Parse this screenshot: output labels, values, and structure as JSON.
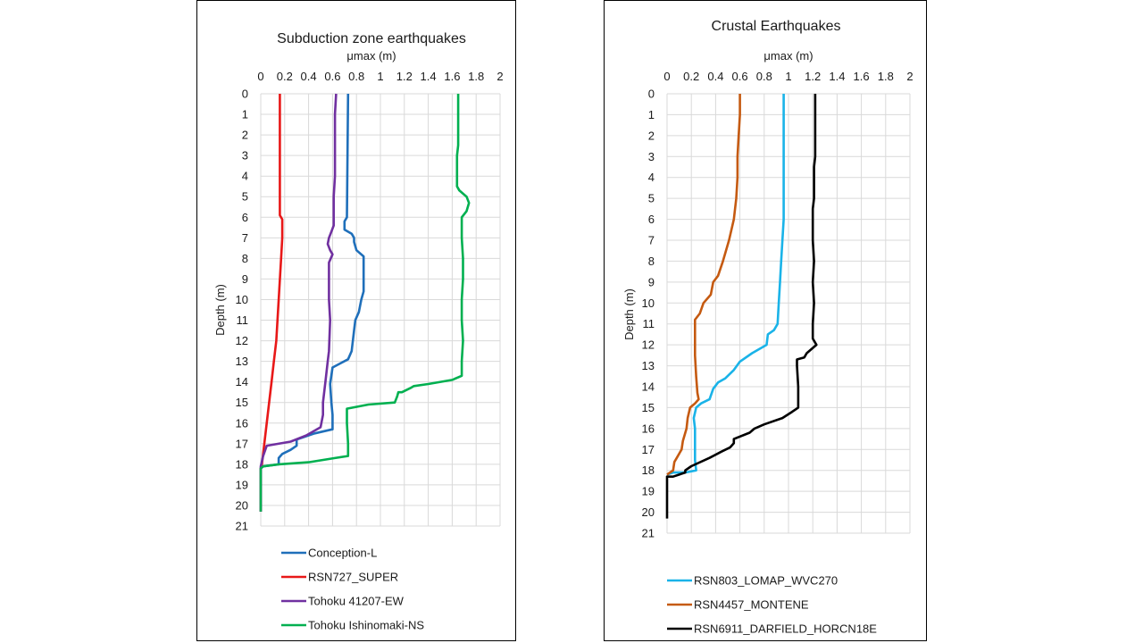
{
  "chart_data": [
    {
      "type": "line",
      "title": "Subduction zone earthquakes",
      "xlabel": "μmax (m)",
      "ylabel": "Depth (m)",
      "xlim": [
        0,
        2
      ],
      "ylim": [
        0,
        21
      ],
      "x_ticks": [
        "0",
        "0.2",
        "0.4",
        "0.6",
        "0.8",
        "1",
        "1.2",
        "1.4",
        "1.6",
        "1.8",
        "2"
      ],
      "y_ticks": [
        "0",
        "1",
        "2",
        "3",
        "4",
        "5",
        "6",
        "7",
        "8",
        "9",
        "10",
        "11",
        "12",
        "13",
        "14",
        "15",
        "16",
        "17",
        "18",
        "19",
        "20",
        "21"
      ],
      "y_inverted": true,
      "grid": true,
      "legend_position": "bottom",
      "series": [
        {
          "name": "Conception-L",
          "color": "#1f6fba",
          "points": [
            [
              0.73,
              0
            ],
            [
              0.72,
              6
            ],
            [
              0.7,
              6.2
            ],
            [
              0.7,
              6.6
            ],
            [
              0.76,
              6.8
            ],
            [
              0.78,
              7
            ],
            [
              0.78,
              7.2
            ],
            [
              0.8,
              7.6
            ],
            [
              0.86,
              7.9
            ],
            [
              0.86,
              9.6
            ],
            [
              0.84,
              10
            ],
            [
              0.82,
              10.6
            ],
            [
              0.79,
              11
            ],
            [
              0.78,
              11.5
            ],
            [
              0.76,
              12.5
            ],
            [
              0.73,
              12.9
            ],
            [
              0.6,
              13.3
            ],
            [
              0.58,
              14.1
            ],
            [
              0.59,
              15
            ],
            [
              0.6,
              15.6
            ],
            [
              0.6,
              16.3
            ],
            [
              0.45,
              16.5
            ],
            [
              0.3,
              16.8
            ],
            [
              0.3,
              17.1
            ],
            [
              0.25,
              17.3
            ],
            [
              0.18,
              17.5
            ],
            [
              0.15,
              17.7
            ],
            [
              0.15,
              18
            ],
            [
              0.02,
              18.1
            ],
            [
              0,
              18.2
            ],
            [
              0,
              20.3
            ]
          ]
        },
        {
          "name": "RSN727_SUPER",
          "color": "#e81818",
          "points": [
            [
              0.16,
              0
            ],
            [
              0.16,
              5.9
            ],
            [
              0.18,
              6.1
            ],
            [
              0.18,
              7
            ],
            [
              0.17,
              8
            ],
            [
              0.15,
              10
            ],
            [
              0.13,
              12
            ],
            [
              0.11,
              13
            ],
            [
              0.09,
              14
            ],
            [
              0.07,
              15
            ],
            [
              0.05,
              16
            ],
            [
              0.03,
              17
            ],
            [
              0.01,
              18
            ],
            [
              0,
              18.2
            ],
            [
              0,
              20.3
            ]
          ]
        },
        {
          "name": "Tohoku 41207-EW",
          "color": "#7030a0",
          "points": [
            [
              0.63,
              0
            ],
            [
              0.62,
              1
            ],
            [
              0.62,
              4
            ],
            [
              0.61,
              5
            ],
            [
              0.61,
              6
            ],
            [
              0.61,
              6.4
            ],
            [
              0.59,
              6.7
            ],
            [
              0.57,
              7
            ],
            [
              0.56,
              7.3
            ],
            [
              0.58,
              7.6
            ],
            [
              0.6,
              7.8
            ],
            [
              0.57,
              8.2
            ],
            [
              0.57,
              10
            ],
            [
              0.58,
              11
            ],
            [
              0.57,
              12.5
            ],
            [
              0.56,
              13
            ],
            [
              0.54,
              14
            ],
            [
              0.52,
              15
            ],
            [
              0.52,
              15.6
            ],
            [
              0.5,
              16.2
            ],
            [
              0.38,
              16.6
            ],
            [
              0.25,
              16.9
            ],
            [
              0.05,
              17.1
            ],
            [
              0.02,
              17.6
            ],
            [
              0,
              18.1
            ],
            [
              0,
              20.3
            ]
          ]
        },
        {
          "name": "Tohoku Ishinomaki-NS",
          "color": "#00b050",
          "points": [
            [
              1.65,
              0
            ],
            [
              1.65,
              2.5
            ],
            [
              1.64,
              3
            ],
            [
              1.64,
              4.5
            ],
            [
              1.66,
              4.7
            ],
            [
              1.72,
              5
            ],
            [
              1.74,
              5.3
            ],
            [
              1.72,
              5.7
            ],
            [
              1.68,
              6
            ],
            [
              1.68,
              7
            ],
            [
              1.69,
              8
            ],
            [
              1.69,
              9
            ],
            [
              1.68,
              10
            ],
            [
              1.68,
              11
            ],
            [
              1.69,
              12
            ],
            [
              1.68,
              13
            ],
            [
              1.68,
              13.7
            ],
            [
              1.6,
              13.9
            ],
            [
              1.4,
              14.1
            ],
            [
              1.28,
              14.2
            ],
            [
              1.25,
              14.3
            ],
            [
              1.18,
              14.5
            ],
            [
              1.15,
              14.5
            ],
            [
              1.14,
              14.7
            ],
            [
              1.12,
              15
            ],
            [
              0.9,
              15.1
            ],
            [
              0.72,
              15.3
            ],
            [
              0.72,
              16
            ],
            [
              0.73,
              17
            ],
            [
              0.73,
              17.6
            ],
            [
              0.62,
              17.7
            ],
            [
              0.4,
              17.9
            ],
            [
              0.15,
              18
            ],
            [
              0.02,
              18.1
            ],
            [
              0,
              18.2
            ],
            [
              0,
              20.3
            ]
          ]
        }
      ]
    },
    {
      "type": "line",
      "title": "Crustal Earthquakes",
      "xlabel": "μmax (m)",
      "ylabel": "Depth (m)",
      "xlim": [
        0,
        2
      ],
      "ylim": [
        0,
        21
      ],
      "x_ticks": [
        "0",
        "0.2",
        "0.4",
        "0.6",
        "0.8",
        "1",
        "1.2",
        "1.4",
        "1.6",
        "1.8",
        "2"
      ],
      "y_ticks": [
        "0",
        "1",
        "2",
        "3",
        "4",
        "5",
        "6",
        "7",
        "8",
        "9",
        "10",
        "11",
        "12",
        "13",
        "14",
        "15",
        "16",
        "17",
        "18",
        "19",
        "20",
        "21"
      ],
      "y_inverted": true,
      "grid": true,
      "legend_position": "bottom",
      "series": [
        {
          "name": "RSN803_LOMAP_WVC270",
          "color": "#1ab3e8",
          "points": [
            [
              0.96,
              0
            ],
            [
              0.96,
              6
            ],
            [
              0.95,
              7
            ],
            [
              0.94,
              8
            ],
            [
              0.93,
              9
            ],
            [
              0.92,
              10
            ],
            [
              0.91,
              11
            ],
            [
              0.88,
              11.3
            ],
            [
              0.83,
              11.5
            ],
            [
              0.82,
              12
            ],
            [
              0.7,
              12.4
            ],
            [
              0.6,
              12.8
            ],
            [
              0.55,
              13.2
            ],
            [
              0.48,
              13.6
            ],
            [
              0.42,
              13.8
            ],
            [
              0.38,
              14.1
            ],
            [
              0.35,
              14.6
            ],
            [
              0.28,
              14.8
            ],
            [
              0.24,
              15
            ],
            [
              0.22,
              15.5
            ],
            [
              0.23,
              16
            ],
            [
              0.23,
              16.5
            ],
            [
              0.23,
              17.5
            ],
            [
              0.24,
              18
            ],
            [
              0.15,
              18.1
            ],
            [
              0.05,
              18.1
            ],
            [
              0,
              18.2
            ]
          ]
        },
        {
          "name": "RSN4457_MONTENE",
          "color": "#c55a11",
          "points": [
            [
              0.6,
              0
            ],
            [
              0.6,
              1
            ],
            [
              0.59,
              2
            ],
            [
              0.58,
              3
            ],
            [
              0.58,
              4
            ],
            [
              0.57,
              5
            ],
            [
              0.55,
              6
            ],
            [
              0.51,
              7
            ],
            [
              0.46,
              8
            ],
            [
              0.42,
              8.7
            ],
            [
              0.38,
              9
            ],
            [
              0.36,
              9.6
            ],
            [
              0.3,
              10
            ],
            [
              0.27,
              10.5
            ],
            [
              0.23,
              10.8
            ],
            [
              0.23,
              11.5
            ],
            [
              0.23,
              12.5
            ],
            [
              0.24,
              13.5
            ],
            [
              0.25,
              14.3
            ],
            [
              0.26,
              14.6
            ],
            [
              0.23,
              14.8
            ],
            [
              0.19,
              15
            ],
            [
              0.17,
              15.5
            ],
            [
              0.16,
              16
            ],
            [
              0.13,
              16.6
            ],
            [
              0.12,
              17
            ],
            [
              0.08,
              17.4
            ],
            [
              0.06,
              17.6
            ],
            [
              0.05,
              18
            ],
            [
              0,
              18.2
            ]
          ]
        },
        {
          "name": "RSN6911_DARFIELD_HORCN18E",
          "color": "#000000",
          "points": [
            [
              1.22,
              0
            ],
            [
              1.22,
              3
            ],
            [
              1.21,
              3.5
            ],
            [
              1.21,
              5
            ],
            [
              1.2,
              5.5
            ],
            [
              1.2,
              7
            ],
            [
              1.21,
              8
            ],
            [
              1.2,
              9
            ],
            [
              1.21,
              10
            ],
            [
              1.2,
              11
            ],
            [
              1.2,
              11.7
            ],
            [
              1.23,
              12
            ],
            [
              1.15,
              12.4
            ],
            [
              1.13,
              12.6
            ],
            [
              1.07,
              12.7
            ],
            [
              1.07,
              13
            ],
            [
              1.08,
              14
            ],
            [
              1.08,
              15
            ],
            [
              1.03,
              15.2
            ],
            [
              0.95,
              15.5
            ],
            [
              0.8,
              15.8
            ],
            [
              0.72,
              16
            ],
            [
              0.68,
              16.2
            ],
            [
              0.55,
              16.5
            ],
            [
              0.55,
              16.7
            ],
            [
              0.52,
              16.9
            ],
            [
              0.45,
              17.1
            ],
            [
              0.35,
              17.4
            ],
            [
              0.2,
              17.8
            ],
            [
              0.15,
              18
            ],
            [
              0.15,
              18.1
            ],
            [
              0.05,
              18.3
            ],
            [
              0,
              18.3
            ],
            [
              0,
              20.3
            ]
          ]
        }
      ]
    }
  ]
}
